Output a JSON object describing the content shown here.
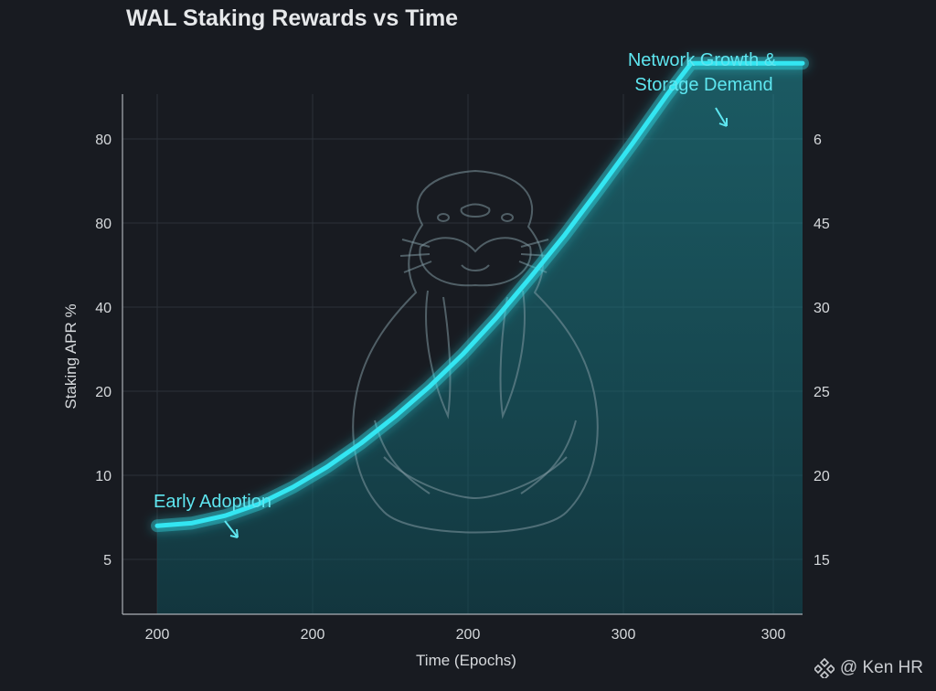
{
  "chart_data": {
    "type": "line",
    "title": "WAL Staking Rewards vs Time",
    "xlabel": "Time (Epochs)",
    "ylabel": "Staking APR %",
    "x_tick_labels": [
      "200",
      "200",
      "200",
      "300",
      "300"
    ],
    "y_left_tick_labels": [
      "5",
      "10",
      "20",
      "40",
      "80",
      "80"
    ],
    "y_right_tick_labels": [
      "15",
      "20",
      "25",
      "30",
      "45",
      "6"
    ],
    "ylim": [
      0,
      6
    ],
    "grid": true,
    "series": [
      {
        "color": "#33e6f2",
        "x": [
          0,
          0.25,
          0.5,
          0.75,
          1.0,
          1.25,
          1.5,
          1.75,
          2.0,
          2.25,
          2.5,
          2.75,
          3.0,
          3.25,
          3.5,
          3.75,
          3.93,
          4.2,
          4.5,
          4.75
        ],
        "y": [
          0.4,
          0.43,
          0.52,
          0.66,
          0.86,
          1.1,
          1.38,
          1.7,
          2.05,
          2.44,
          2.88,
          3.36,
          3.86,
          4.4,
          4.95,
          5.52,
          5.9,
          5.9,
          5.9,
          5.9
        ]
      }
    ],
    "annotations": [
      {
        "text": "Early Adoption",
        "x": 0.55,
        "y": 0.6
      },
      {
        "text": "Network Growth & Storage Demand",
        "x": 3.93,
        "y": 5.9
      }
    ]
  },
  "annotation_labels": {
    "early": "Early Adoption",
    "network_line1": "Network Growth &",
    "network_line2": "Storage Demand"
  },
  "watermark": "@ Ken HR",
  "colors": {
    "background": "#181b21",
    "line": "#33e6f2",
    "annotation": "#5ee6f0",
    "grid": "#2c3139",
    "axis": "#aab0b6"
  }
}
